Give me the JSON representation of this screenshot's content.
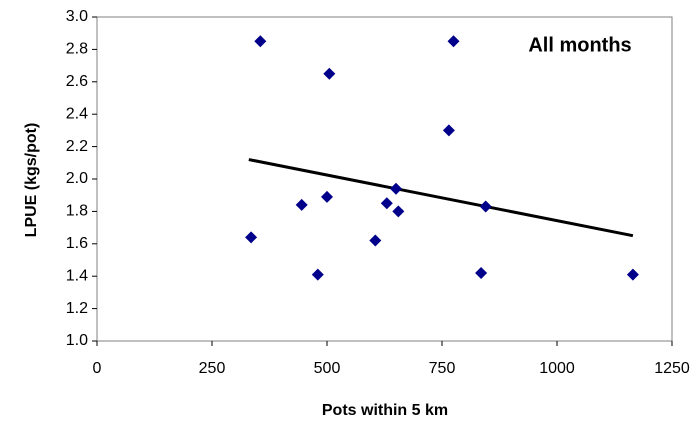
{
  "chart_data": {
    "type": "scatter",
    "annotation": "All months",
    "x_label": "Pots within 5 km",
    "y_label": "LPUE (kgs/pot)",
    "x": [
      335,
      355,
      505,
      445,
      500,
      480,
      630,
      650,
      655,
      605,
      765,
      775,
      845,
      835,
      1165
    ],
    "values": [
      1.64,
      2.85,
      2.65,
      1.84,
      1.89,
      1.41,
      1.85,
      1.94,
      1.8,
      1.62,
      2.3,
      2.85,
      1.83,
      1.42,
      1.41
    ],
    "color": "#00008b",
    "trend": {
      "x": [
        330,
        1165
      ],
      "values": [
        2.12,
        1.65
      ],
      "color": "#000000"
    },
    "xlim": [
      0,
      1250
    ],
    "xticks": [
      0,
      250,
      500,
      750,
      1000,
      1250
    ],
    "ylim": [
      1.0,
      3.0
    ],
    "yticks": [
      {
        "value": 1.0,
        "label": "1.0"
      },
      {
        "value": 1.2,
        "label": "1.2"
      },
      {
        "value": 1.4,
        "label": "1.4"
      },
      {
        "value": 1.6,
        "label": "1.6"
      },
      {
        "value": 1.8,
        "label": "1.8"
      },
      {
        "value": 2.0,
        "label": "2.0"
      },
      {
        "value": 2.2,
        "label": "2.2"
      },
      {
        "value": 2.4,
        "label": "2.4"
      },
      {
        "value": 2.6,
        "label": "2.6"
      },
      {
        "value": 2.8,
        "label": "2.8"
      },
      {
        "value": 3.0,
        "label": "3.0"
      }
    ]
  }
}
